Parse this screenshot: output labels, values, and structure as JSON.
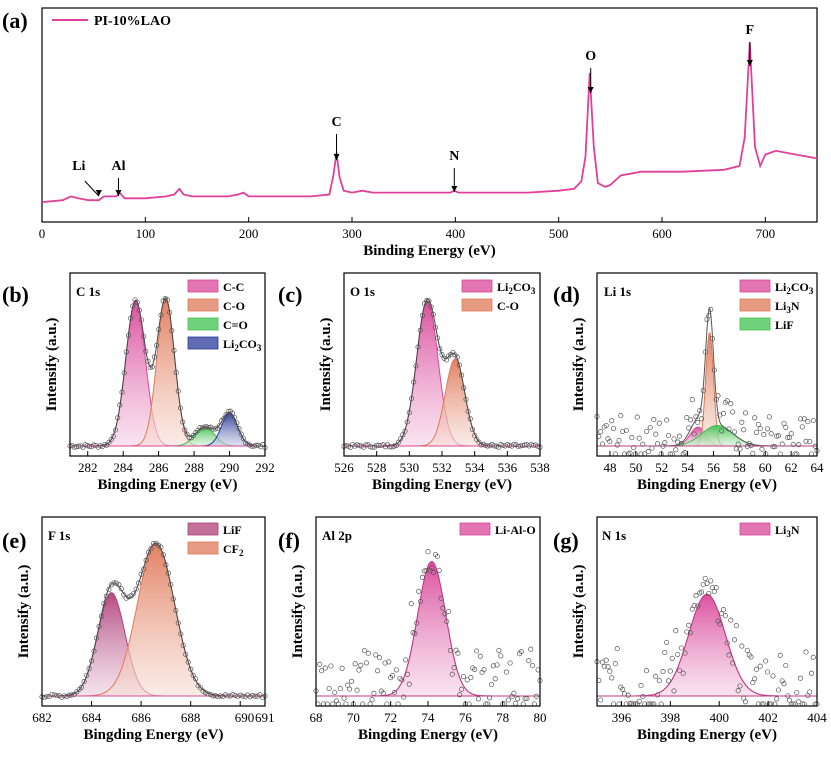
{
  "chart_data": [
    {
      "id": "a",
      "type": "line",
      "panel_label": "(a)",
      "legend": [
        "PI-10%LAO"
      ],
      "xlabel": "Binding Energy (eV)",
      "xlim": [
        0,
        750
      ],
      "xticks": [
        0,
        100,
        200,
        300,
        400,
        500,
        600,
        700
      ],
      "series": [
        {
          "name": "PI-10%LAO",
          "color": "#e0409a",
          "x": [
            0,
            20,
            28,
            35,
            45,
            55,
            60,
            72,
            75,
            80,
            100,
            120,
            128,
            133,
            137,
            145,
            180,
            190,
            195,
            200,
            230,
            260,
            278,
            282,
            285,
            288,
            292,
            300,
            310,
            320,
            360,
            395,
            399,
            403,
            420,
            470,
            500,
            515,
            522,
            526,
            530,
            534,
            538,
            545,
            550,
            560,
            580,
            620,
            660,
            675,
            680,
            685,
            690,
            695,
            700,
            710,
            730,
            750
          ],
          "y": [
            0.01,
            0.02,
            0.04,
            0.03,
            0.02,
            0.02,
            0.04,
            0.04,
            0.06,
            0.03,
            0.03,
            0.04,
            0.05,
            0.08,
            0.05,
            0.04,
            0.04,
            0.05,
            0.06,
            0.04,
            0.04,
            0.04,
            0.05,
            0.15,
            0.27,
            0.14,
            0.07,
            0.06,
            0.07,
            0.06,
            0.06,
            0.06,
            0.07,
            0.06,
            0.06,
            0.06,
            0.07,
            0.08,
            0.12,
            0.25,
            0.69,
            0.3,
            0.11,
            0.09,
            0.1,
            0.15,
            0.17,
            0.17,
            0.18,
            0.2,
            0.35,
            0.85,
            0.3,
            0.2,
            0.26,
            0.28,
            0.26,
            0.24
          ]
        }
      ],
      "annotations": [
        {
          "text": "Li",
          "x": 55
        },
        {
          "text": "Al",
          "x": 74
        },
        {
          "text": "C",
          "x": 285
        },
        {
          "text": "N",
          "x": 399
        },
        {
          "text": "O",
          "x": 531
        },
        {
          "text": "F",
          "x": 685
        }
      ]
    },
    {
      "id": "b",
      "type": "area",
      "panel_label": "(b)",
      "title": "C 1s",
      "xlabel": "Bingding Energy (eV)",
      "ylabel": "Intensify (a.u.)",
      "xlim": [
        281,
        292
      ],
      "xticks": [
        282,
        284,
        286,
        288,
        290,
        292
      ],
      "ymax": 1.0,
      "peaks": [
        {
          "label": "C-C",
          "center": 284.7,
          "height": 0.92,
          "width": 0.55,
          "color": "#d9479a"
        },
        {
          "label": "C-O",
          "center": 286.4,
          "height": 0.93,
          "width": 0.5,
          "color": "#e07a5a"
        },
        {
          "label": "C=O",
          "center": 288.6,
          "height": 0.12,
          "width": 0.55,
          "color": "#3fc24f"
        },
        {
          "label": "Li2CO3",
          "center": 290.0,
          "height": 0.21,
          "width": 0.45,
          "color": "#2a3a9a"
        }
      ],
      "legend_display": [
        "C-C",
        "C-O",
        "C=O"
      ],
      "legend_sub": {
        "base": "Li",
        "sub": "2",
        "mid": "CO",
        "sub2": "3"
      }
    },
    {
      "id": "c",
      "type": "area",
      "panel_label": "(c)",
      "title": "O 1s",
      "xlabel": "Bingding Energy (eV)",
      "ylabel": "Intensify (a.u.)",
      "xlim": [
        526,
        538
      ],
      "xticks": [
        526,
        528,
        530,
        532,
        534,
        536,
        538
      ],
      "ymax": 1.0,
      "peaks": [
        {
          "label": "Li2CO3",
          "center": 531.1,
          "height": 0.92,
          "width": 0.65,
          "color": "#d9479a"
        },
        {
          "label": "C-O",
          "center": 532.8,
          "height": 0.55,
          "width": 0.6,
          "color": "#e07a5a"
        }
      ]
    },
    {
      "id": "d",
      "type": "area",
      "panel_label": "(d)",
      "title": "Li 1s",
      "xlabel": "Bingding Energy (eV)",
      "ylabel": "Intensify (a.u.)",
      "xlim": [
        47,
        64
      ],
      "xticks": [
        48,
        50,
        52,
        54,
        56,
        58,
        60,
        62,
        64
      ],
      "ymax": 1.0,
      "peaks": [
        {
          "label": "Li2CO3",
          "center": 54.8,
          "height": 0.12,
          "width": 0.6,
          "color": "#d9479a"
        },
        {
          "label": "Li3N",
          "center": 55.7,
          "height": 0.72,
          "width": 0.3,
          "color": "#e07a5a"
        },
        {
          "label": "LiF",
          "center": 56.3,
          "height": 0.13,
          "width": 1.2,
          "color": "#3fc24f"
        }
      ]
    },
    {
      "id": "e",
      "type": "area",
      "panel_label": "(e)",
      "title": "F 1s",
      "xlabel": "Bingding Energy (eV)",
      "ylabel": "Intensify (a.u.)",
      "xlim": [
        682,
        691
      ],
      "xticks": [
        682,
        684,
        686,
        688,
        690,
        691
      ],
      "xticklabels": [
        "682",
        "684",
        "686",
        "688",
        "690",
        "691"
      ],
      "ymax": 1.0,
      "peaks": [
        {
          "label": "LiF",
          "center": 684.8,
          "height": 0.63,
          "width": 0.55,
          "color": "#b0407a"
        },
        {
          "label": "CF2",
          "center": 686.6,
          "height": 0.93,
          "width": 0.75,
          "color": "#e07a5a"
        }
      ]
    },
    {
      "id": "f",
      "type": "area",
      "panel_label": "(f)",
      "title": "Al 2p",
      "xlabel": "Bingding Energy (eV)",
      "ylabel": "Intensify (a.u.)",
      "xlim": [
        68,
        80
      ],
      "xticks": [
        68,
        70,
        72,
        74,
        76,
        78,
        80
      ],
      "ymax": 1.0,
      "peaks": [
        {
          "label": "Li-Al-O",
          "center": 74.2,
          "height": 0.82,
          "width": 0.75,
          "color": "#d9479a"
        }
      ]
    },
    {
      "id": "g",
      "type": "area",
      "panel_label": "(g)",
      "title": "N 1s",
      "xlabel": "Bingding Energy (eV)",
      "ylabel": "Intensify (a.u.)",
      "xlim": [
        395,
        404
      ],
      "xticks": [
        396,
        398,
        400,
        402,
        404
      ],
      "ymax": 1.0,
      "peaks": [
        {
          "label": "Li3N",
          "center": 399.5,
          "height": 0.62,
          "width": 0.75,
          "color": "#d9479a"
        }
      ]
    }
  ],
  "legend_text": {
    "b": [
      {
        "t": "C-C"
      },
      {
        "t": "C-O"
      },
      {
        "t": "C=O"
      },
      {
        "t": "Li",
        "s": "2",
        "t2": "CO",
        "s2": "3"
      }
    ],
    "c": [
      {
        "t": "Li",
        "s": "2",
        "t2": "CO",
        "s2": "3"
      },
      {
        "t": "C-O"
      }
    ],
    "d": [
      {
        "t": "Li",
        "s": "2",
        "t2": "CO",
        "s2": "3"
      },
      {
        "t": "Li",
        "s": "3",
        "t2": "N"
      },
      {
        "t": "LiF"
      }
    ],
    "e": [
      {
        "t": "LiF"
      },
      {
        "t": "CF",
        "s": "2"
      }
    ],
    "f": [
      {
        "t": "Li-Al-O"
      }
    ],
    "g": [
      {
        "t": "Li",
        "s": "3",
        "t2": "N"
      }
    ]
  }
}
